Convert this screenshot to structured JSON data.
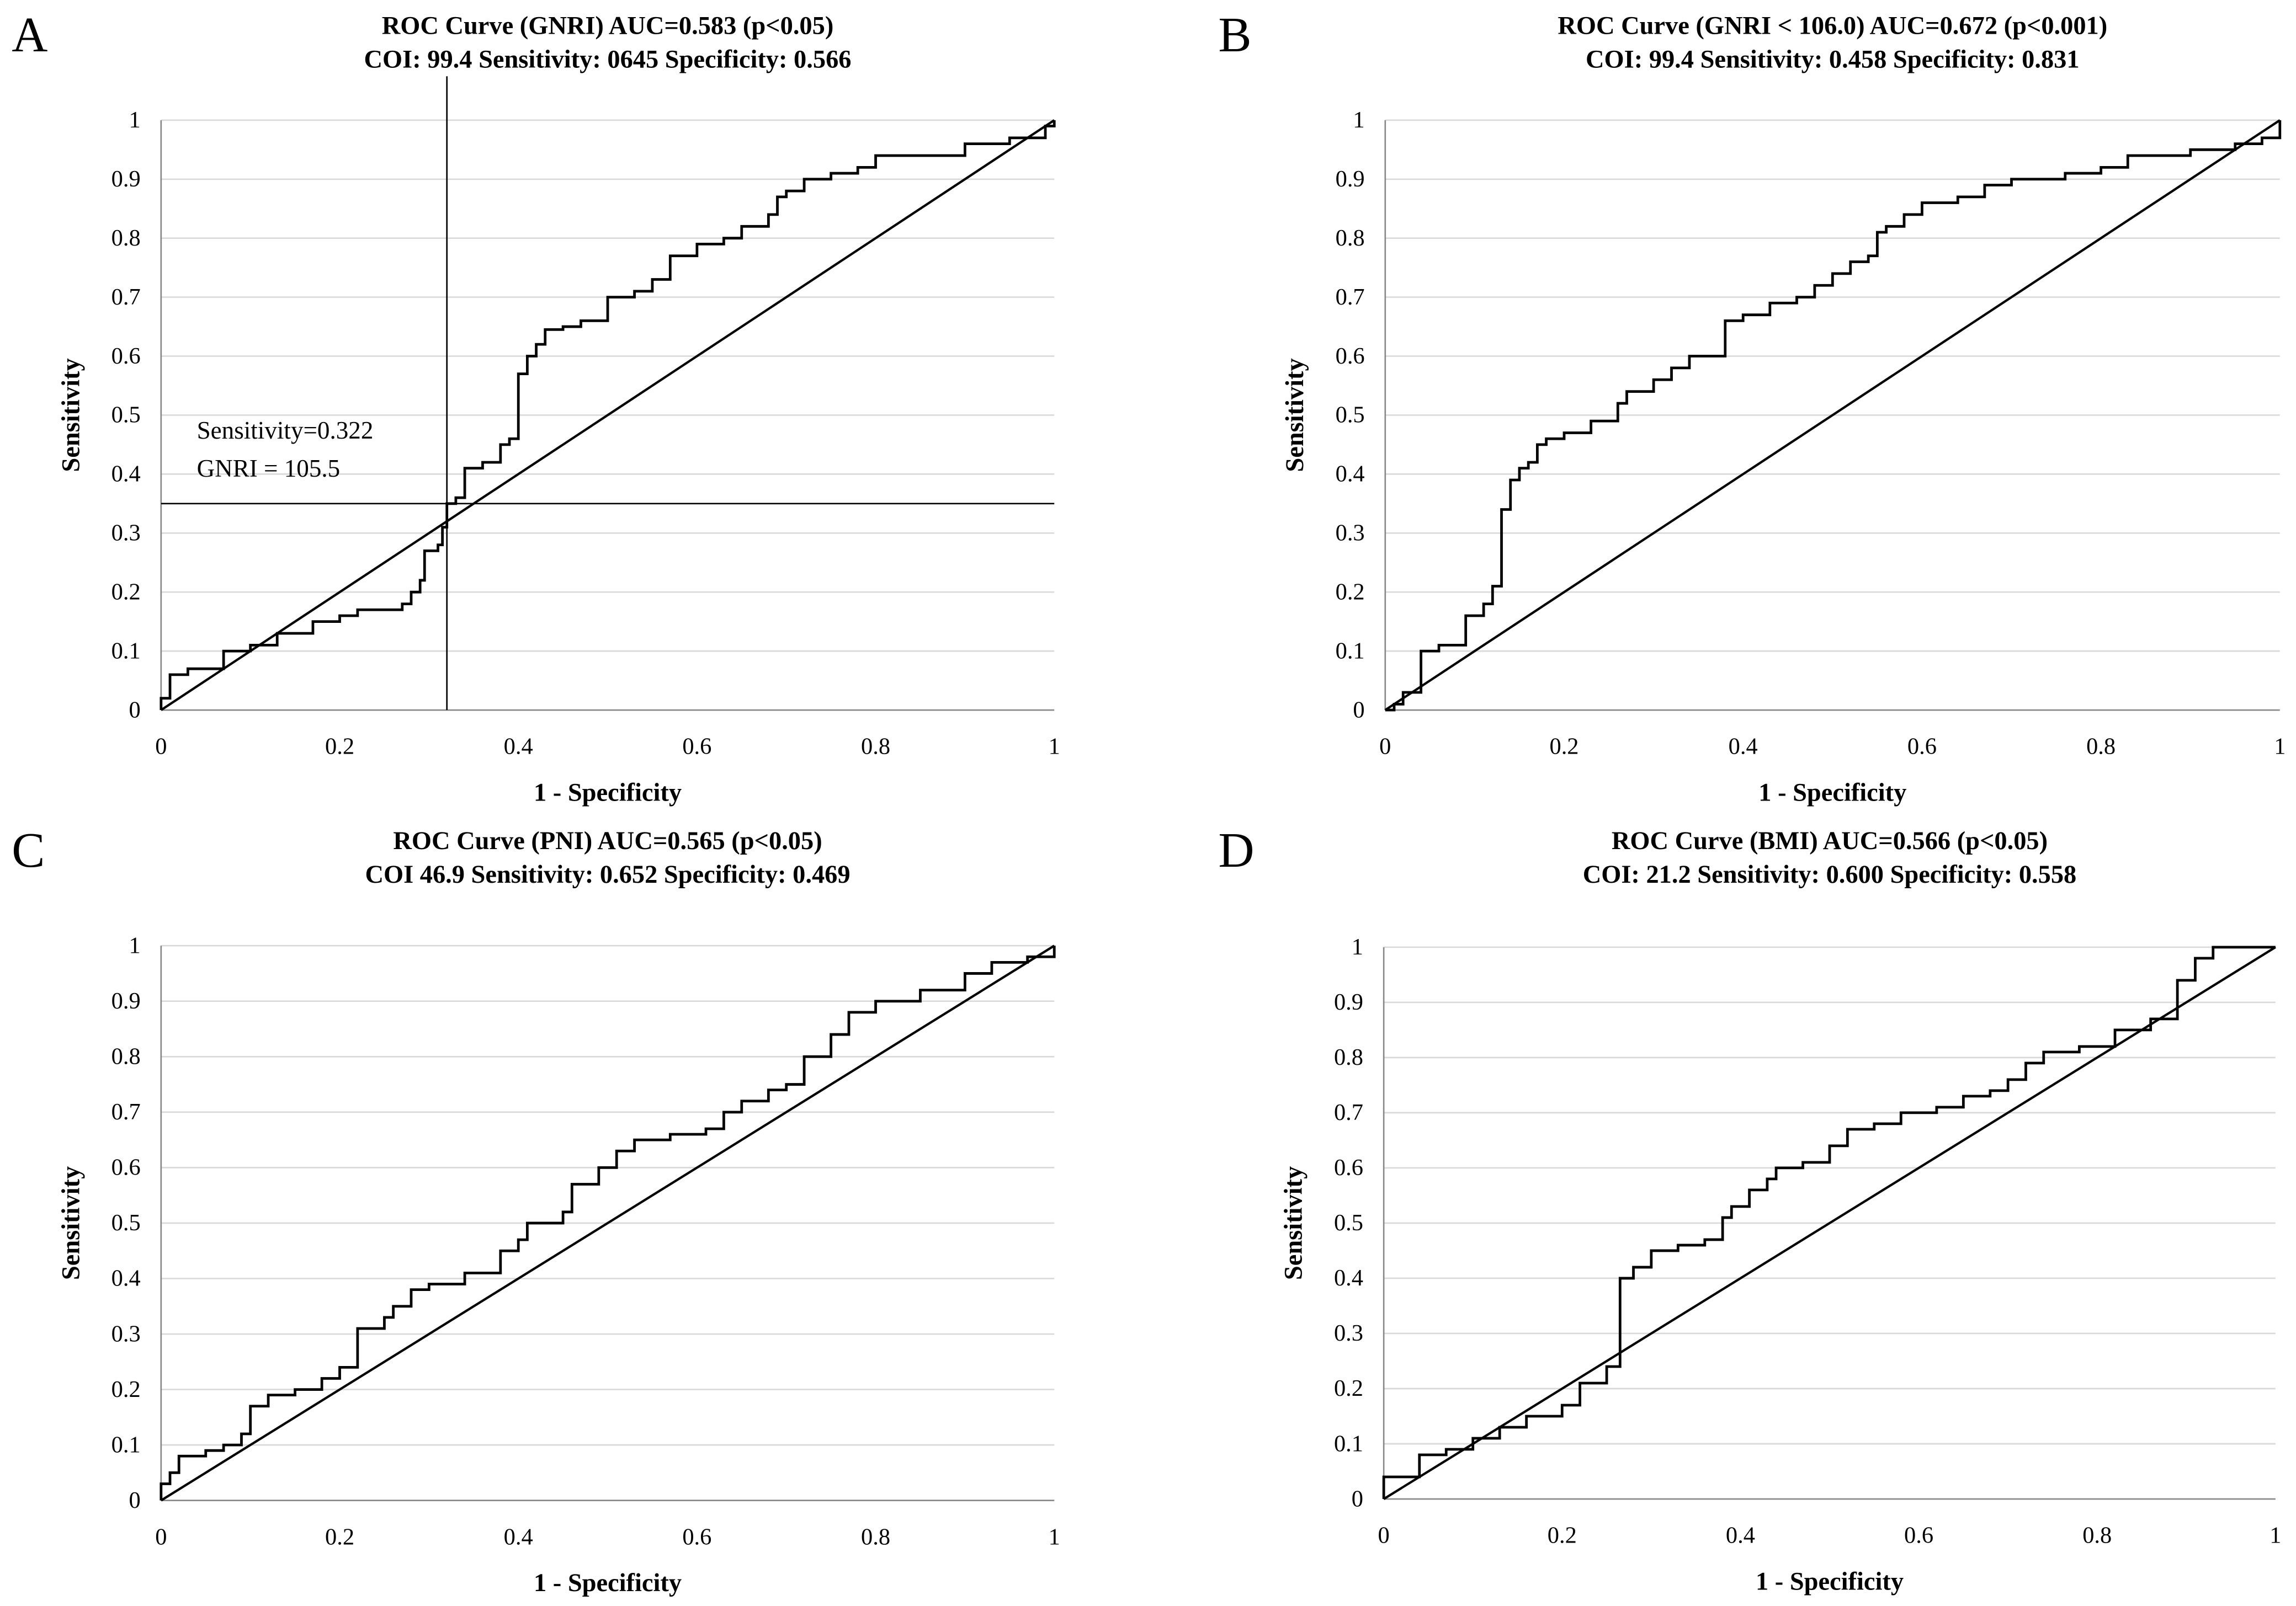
{
  "chart_data": [
    {
      "type": "line",
      "panel": "A",
      "title": [
        "ROC Curve (GNRI) AUC=0.583 (p<0.05)",
        "COI: 99.4 Sensitivity: 0645 Specificity: 0.566"
      ],
      "xlabel": "1 - Specificity",
      "ylabel": "Sensitivity",
      "xlim": [
        0,
        1
      ],
      "ylim": [
        0,
        1
      ],
      "xticks": [
        "0",
        "0.2",
        "0.4",
        "0.6",
        "0.8",
        "1"
      ],
      "yticks": [
        "0",
        "0.1",
        "0.2",
        "0.3",
        "0.4",
        "0.5",
        "0.6",
        "0.7",
        "0.8",
        "0.9",
        "1"
      ],
      "grid": "horizontal",
      "reference_line": [
        [
          0,
          0
        ],
        [
          1,
          1
        ]
      ],
      "cutoff_lines": {
        "x": 0.32,
        "y": 0.35
      },
      "annotations": [
        "Sensitivity=0.322",
        "GNRI = 105.5"
      ],
      "series": [
        {
          "points": [
            [
              0,
              0
            ],
            [
              0,
              0.02
            ],
            [
              0.01,
              0.04
            ],
            [
              0.01,
              0.06
            ],
            [
              0.03,
              0.07
            ],
            [
              0.07,
              0.08
            ],
            [
              0.07,
              0.1
            ],
            [
              0.1,
              0.11
            ],
            [
              0.13,
              0.13
            ],
            [
              0.17,
              0.15
            ],
            [
              0.2,
              0.16
            ],
            [
              0.22,
              0.17
            ],
            [
              0.27,
              0.18
            ],
            [
              0.28,
              0.2
            ],
            [
              0.29,
              0.22
            ],
            [
              0.295,
              0.27
            ],
            [
              0.31,
              0.28
            ],
            [
              0.315,
              0.31
            ],
            [
              0.32,
              0.32
            ],
            [
              0.32,
              0.35
            ],
            [
              0.33,
              0.36
            ],
            [
              0.34,
              0.41
            ],
            [
              0.36,
              0.42
            ],
            [
              0.38,
              0.45
            ],
            [
              0.39,
              0.46
            ],
            [
              0.4,
              0.57
            ],
            [
              0.41,
              0.6
            ],
            [
              0.42,
              0.62
            ],
            [
              0.43,
              0.645
            ],
            [
              0.45,
              0.65
            ],
            [
              0.47,
              0.66
            ],
            [
              0.5,
              0.7
            ],
            [
              0.53,
              0.71
            ],
            [
              0.55,
              0.73
            ],
            [
              0.57,
              0.74
            ],
            [
              0.57,
              0.77
            ],
            [
              0.6,
              0.79
            ],
            [
              0.63,
              0.8
            ],
            [
              0.65,
              0.82
            ],
            [
              0.68,
              0.84
            ],
            [
              0.69,
              0.87
            ],
            [
              0.7,
              0.88
            ],
            [
              0.72,
              0.9
            ],
            [
              0.75,
              0.91
            ],
            [
              0.78,
              0.92
            ],
            [
              0.8,
              0.94
            ],
            [
              0.87,
              0.94
            ],
            [
              0.9,
              0.96
            ],
            [
              0.95,
              0.97
            ],
            [
              0.99,
              0.99
            ],
            [
              1,
              1
            ]
          ]
        }
      ]
    },
    {
      "type": "line",
      "panel": "B",
      "title": [
        "ROC Curve (GNRI < 106.0) AUC=0.672 (p<0.001)",
        "COI: 99.4 Sensitivity: 0.458 Specificity: 0.831"
      ],
      "xlabel": "1 - Specificity",
      "ylabel": "Sensitivity",
      "xlim": [
        0,
        1
      ],
      "ylim": [
        0,
        1
      ],
      "xticks": [
        "0",
        "0.2",
        "0.4",
        "0.6",
        "0.8",
        "1"
      ],
      "yticks": [
        "0",
        "0.1",
        "0.2",
        "0.3",
        "0.4",
        "0.5",
        "0.6",
        "0.7",
        "0.8",
        "0.9",
        "1"
      ],
      "grid": "horizontal",
      "reference_line": [
        [
          0,
          0
        ],
        [
          1,
          1
        ]
      ],
      "series": [
        {
          "points": [
            [
              0,
              0
            ],
            [
              0.01,
              0.01
            ],
            [
              0.02,
              0.03
            ],
            [
              0.04,
              0.04
            ],
            [
              0.04,
              0.1
            ],
            [
              0.06,
              0.11
            ],
            [
              0.09,
              0.115
            ],
            [
              0.09,
              0.16
            ],
            [
              0.11,
              0.18
            ],
            [
              0.12,
              0.21
            ],
            [
              0.13,
              0.22
            ],
            [
              0.13,
              0.34
            ],
            [
              0.14,
              0.36
            ],
            [
              0.14,
              0.39
            ],
            [
              0.15,
              0.41
            ],
            [
              0.16,
              0.42
            ],
            [
              0.17,
              0.45
            ],
            [
              0.18,
              0.46
            ],
            [
              0.2,
              0.47
            ],
            [
              0.23,
              0.49
            ],
            [
              0.26,
              0.5
            ],
            [
              0.26,
              0.52
            ],
            [
              0.27,
              0.54
            ],
            [
              0.3,
              0.56
            ],
            [
              0.32,
              0.58
            ],
            [
              0.34,
              0.6
            ],
            [
              0.37,
              0.6
            ],
            [
              0.38,
              0.66
            ],
            [
              0.4,
              0.67
            ],
            [
              0.43,
              0.69
            ],
            [
              0.46,
              0.7
            ],
            [
              0.48,
              0.72
            ],
            [
              0.5,
              0.74
            ],
            [
              0.52,
              0.76
            ],
            [
              0.54,
              0.77
            ],
            [
              0.55,
              0.81
            ],
            [
              0.56,
              0.82
            ],
            [
              0.58,
              0.84
            ],
            [
              0.6,
              0.86
            ],
            [
              0.64,
              0.87
            ],
            [
              0.67,
              0.89
            ],
            [
              0.7,
              0.9
            ],
            [
              0.76,
              0.91
            ],
            [
              0.8,
              0.92
            ],
            [
              0.83,
              0.94
            ],
            [
              0.9,
              0.95
            ],
            [
              0.95,
              0.96
            ],
            [
              0.98,
              0.97
            ],
            [
              1,
              0.98
            ],
            [
              1,
              1
            ]
          ]
        }
      ]
    },
    {
      "type": "line",
      "panel": "C",
      "title": [
        "ROC Curve (PNI) AUC=0.565 (p<0.05)",
        "COI 46.9 Sensitivity: 0.652 Specificity: 0.469"
      ],
      "xlabel": "1 - Specificity",
      "ylabel": "Sensitivity",
      "xlim": [
        0,
        1
      ],
      "ylim": [
        0,
        1
      ],
      "xticks": [
        "0",
        "0.2",
        "0.4",
        "0.6",
        "0.8",
        "1"
      ],
      "yticks": [
        "0",
        "0.1",
        "0.2",
        "0.3",
        "0.4",
        "0.5",
        "0.6",
        "0.7",
        "0.8",
        "0.9",
        "1"
      ],
      "grid": "horizontal",
      "reference_line": [
        [
          0,
          0
        ],
        [
          1,
          1
        ]
      ],
      "series": [
        {
          "points": [
            [
              0,
              0
            ],
            [
              0,
              0.03
            ],
            [
              0.01,
              0.05
            ],
            [
              0.02,
              0.08
            ],
            [
              0.05,
              0.09
            ],
            [
              0.07,
              0.1
            ],
            [
              0.09,
              0.12
            ],
            [
              0.1,
              0.17
            ],
            [
              0.12,
              0.19
            ],
            [
              0.15,
              0.2
            ],
            [
              0.18,
              0.22
            ],
            [
              0.2,
              0.24
            ],
            [
              0.22,
              0.26
            ],
            [
              0.22,
              0.31
            ],
            [
              0.25,
              0.33
            ],
            [
              0.26,
              0.35
            ],
            [
              0.28,
              0.38
            ],
            [
              0.3,
              0.39
            ],
            [
              0.34,
              0.41
            ],
            [
              0.36,
              0.41
            ],
            [
              0.38,
              0.45
            ],
            [
              0.4,
              0.47
            ],
            [
              0.41,
              0.5
            ],
            [
              0.45,
              0.52
            ],
            [
              0.46,
              0.57
            ],
            [
              0.49,
              0.6
            ],
            [
              0.51,
              0.63
            ],
            [
              0.53,
              0.65
            ],
            [
              0.57,
              0.66
            ],
            [
              0.61,
              0.67
            ],
            [
              0.63,
              0.7
            ],
            [
              0.65,
              0.72
            ],
            [
              0.68,
              0.74
            ],
            [
              0.7,
              0.75
            ],
            [
              0.72,
              0.8
            ],
            [
              0.75,
              0.84
            ],
            [
              0.77,
              0.88
            ],
            [
              0.8,
              0.9
            ],
            [
              0.85,
              0.92
            ],
            [
              0.9,
              0.95
            ],
            [
              0.93,
              0.97
            ],
            [
              0.97,
              0.98
            ],
            [
              1,
              1
            ]
          ]
        }
      ]
    },
    {
      "type": "line",
      "panel": "D",
      "title": [
        "ROC Curve (BMI) AUC=0.566 (p<0.05)",
        "COI: 21.2 Sensitivity: 0.600 Specificity: 0.558"
      ],
      "xlabel": "1 - Specificity",
      "ylabel": "Sensitivity",
      "xlim": [
        0,
        1
      ],
      "ylim": [
        0,
        1
      ],
      "xticks": [
        "0",
        "0.2",
        "0.4",
        "0.6",
        "0.8",
        "1"
      ],
      "yticks": [
        "0",
        "0.1",
        "0.2",
        "0.3",
        "0.4",
        "0.5",
        "0.6",
        "0.7",
        "0.8",
        "0.9",
        "1"
      ],
      "grid": "horizontal",
      "reference_line": [
        [
          0,
          0
        ],
        [
          1,
          1
        ]
      ],
      "series": [
        {
          "points": [
            [
              0,
              0
            ],
            [
              0,
              0.04
            ],
            [
              0.03,
              0.04
            ],
            [
              0.04,
              0.08
            ],
            [
              0.07,
              0.09
            ],
            [
              0.1,
              0.11
            ],
            [
              0.13,
              0.13
            ],
            [
              0.16,
              0.15
            ],
            [
              0.2,
              0.17
            ],
            [
              0.22,
              0.21
            ],
            [
              0.25,
              0.24
            ],
            [
              0.265,
              0.25
            ],
            [
              0.265,
              0.4
            ],
            [
              0.28,
              0.42
            ],
            [
              0.3,
              0.45
            ],
            [
              0.33,
              0.46
            ],
            [
              0.36,
              0.47
            ],
            [
              0.38,
              0.51
            ],
            [
              0.39,
              0.53
            ],
            [
              0.41,
              0.56
            ],
            [
              0.43,
              0.58
            ],
            [
              0.44,
              0.6
            ],
            [
              0.47,
              0.61
            ],
            [
              0.5,
              0.64
            ],
            [
              0.52,
              0.67
            ],
            [
              0.55,
              0.68
            ],
            [
              0.58,
              0.7
            ],
            [
              0.62,
              0.71
            ],
            [
              0.65,
              0.73
            ],
            [
              0.68,
              0.74
            ],
            [
              0.7,
              0.76
            ],
            [
              0.72,
              0.79
            ],
            [
              0.74,
              0.81
            ],
            [
              0.78,
              0.82
            ],
            [
              0.82,
              0.85
            ],
            [
              0.86,
              0.87
            ],
            [
              0.89,
              0.88
            ],
            [
              0.89,
              0.94
            ],
            [
              0.91,
              0.98
            ],
            [
              0.93,
              1
            ],
            [
              1,
              1
            ]
          ]
        }
      ]
    }
  ],
  "colors": {
    "line": "#000000",
    "grid": "#d9d9d9"
  }
}
